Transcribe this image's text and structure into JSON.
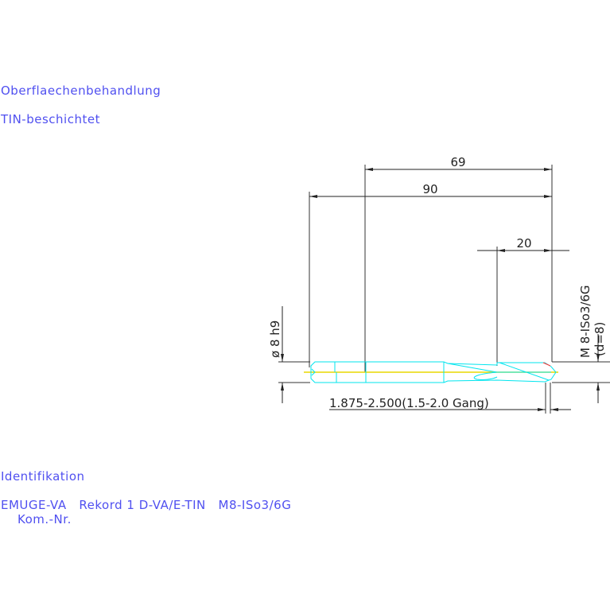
{
  "notes": {
    "surface_label": "Oberflaechenbehandlung",
    "surface_value": "TIN-beschichtet",
    "ident_label": "Identifikation",
    "ident_value": "EMUGE-VA   Rekord 1 D-VA/E-TIN   M8-ISo3/6G",
    "kom_label": "Kom.-Nr."
  },
  "dimensions": {
    "thread_length": "69",
    "total_length": "90",
    "chamfer_length": "20",
    "shank_diameter": "ø 8 h9",
    "thread_spec": "M 8-ISo3/6G",
    "thread_diameter": "(d=8)",
    "chamfer_note": "1.875-2.500(1.5-2.0 Gang)"
  },
  "colors": {
    "text": "#5050f0",
    "dimension": "#222222",
    "tool_outline": "#00e5ee",
    "center_line": "#e8d800",
    "highlight": "#ff3030"
  }
}
